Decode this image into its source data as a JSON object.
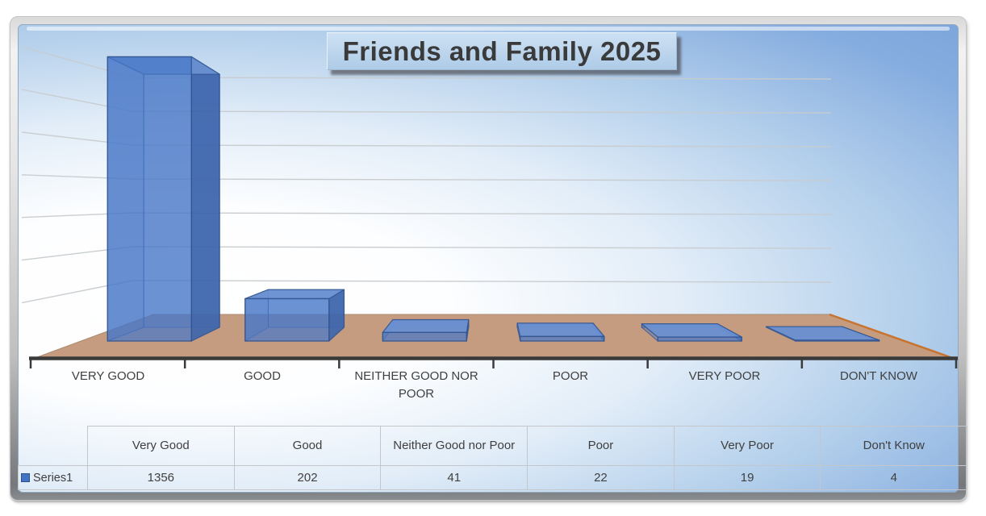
{
  "chart_data": {
    "type": "bar",
    "style": "3d-clustered-column",
    "title": "Friends and Family 2025",
    "categories": [
      "Very Good",
      "Good",
      "Neither Good nor Poor",
      "Poor",
      "Very Poor",
      "Don't Know"
    ],
    "axis_labels": [
      "VERY GOOD",
      "GOOD",
      "NEITHER GOOD NOR POOR",
      "POOR",
      "VERY POOR",
      "DON'T KNOW"
    ],
    "series": [
      {
        "name": "Series1",
        "values": [
          1356,
          202,
          41,
          22,
          19,
          4
        ],
        "color": "#4472C4"
      }
    ],
    "ylim": [
      0,
      1600
    ],
    "gridline_step": 200,
    "value_axis_labels_visible": false,
    "data_table_visible": true,
    "legend": {
      "position": "data-table-left",
      "entries": [
        {
          "label": "Series1",
          "swatch_color": "#4472C4"
        }
      ]
    },
    "colors": {
      "bar_fill": "#4472C4",
      "bar_edge": "#2F528F",
      "floor": "#C59C80",
      "floor_right_edge": "#C8742F",
      "axis_line": "#3A3A3A",
      "background_blue": "#74A1D8",
      "title_box": "#BDD7EE",
      "text": "#3F3F3F"
    }
  }
}
